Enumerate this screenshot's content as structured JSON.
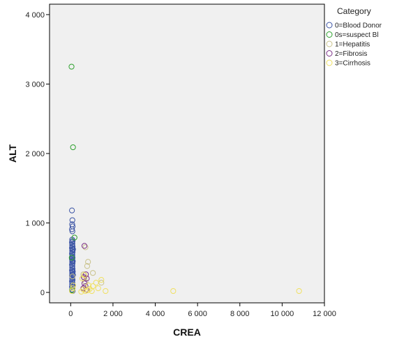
{
  "chart_data": {
    "type": "scatter",
    "xlabel": "CREA",
    "ylabel": "ALT",
    "xlim": [
      -1000,
      12000
    ],
    "ylim": [
      -150,
      4150
    ],
    "xticks": [
      0,
      2000,
      4000,
      6000,
      8000,
      10000,
      12000
    ],
    "xtick_labels": [
      "0",
      "2 000",
      "4 000",
      "6 000",
      "8 000",
      "10 000",
      "12 000"
    ],
    "yticks": [
      0,
      1000,
      2000,
      3000,
      4000
    ],
    "ytick_labels": [
      "0",
      "1 000",
      "2 000",
      "3 000",
      "4 000"
    ],
    "grid": false,
    "legend": {
      "title": "Category",
      "placement": "right"
    },
    "series": [
      {
        "name": "0=Blood Donor",
        "color": "#3a53a4",
        "points": [
          [
            60,
            1180
          ],
          [
            80,
            1040
          ],
          [
            70,
            980
          ],
          [
            90,
            950
          ],
          [
            60,
            910
          ],
          [
            80,
            880
          ],
          [
            70,
            760
          ],
          [
            90,
            740
          ],
          [
            60,
            720
          ],
          [
            80,
            700
          ],
          [
            70,
            680
          ],
          [
            90,
            660
          ],
          [
            60,
            640
          ],
          [
            80,
            620
          ],
          [
            70,
            600
          ],
          [
            90,
            580
          ],
          [
            60,
            560
          ],
          [
            80,
            540
          ],
          [
            70,
            520
          ],
          [
            90,
            500
          ],
          [
            60,
            480
          ],
          [
            80,
            460
          ],
          [
            70,
            440
          ],
          [
            90,
            420
          ],
          [
            60,
            400
          ],
          [
            80,
            380
          ],
          [
            70,
            360
          ],
          [
            90,
            340
          ],
          [
            60,
            320
          ],
          [
            80,
            300
          ],
          [
            70,
            280
          ],
          [
            90,
            260
          ],
          [
            60,
            240
          ],
          [
            80,
            220
          ],
          [
            70,
            200
          ],
          [
            90,
            180
          ],
          [
            60,
            160
          ],
          [
            80,
            140
          ],
          [
            70,
            120
          ],
          [
            90,
            100
          ],
          [
            60,
            80
          ],
          [
            80,
            60
          ],
          [
            70,
            40
          ],
          [
            90,
            20
          ],
          [
            100,
            300
          ],
          [
            110,
            250
          ],
          [
            100,
            450
          ],
          [
            110,
            620
          ]
        ]
      },
      {
        "name": "0s=suspect Bl",
        "color": "#2ca02c",
        "points": [
          [
            40,
            3250
          ],
          [
            110,
            2090
          ],
          [
            180,
            790
          ],
          [
            50,
            500
          ],
          [
            60,
            30
          ]
        ]
      },
      {
        "name": "1=Hepatitis",
        "color": "#c9c28a",
        "points": [
          [
            700,
            650
          ],
          [
            820,
            440
          ],
          [
            780,
            380
          ],
          [
            1050,
            280
          ],
          [
            600,
            260
          ],
          [
            650,
            200
          ],
          [
            700,
            150
          ],
          [
            1450,
            140
          ],
          [
            600,
            60
          ],
          [
            80,
            230
          ]
        ]
      },
      {
        "name": "2=Fibrosis",
        "color": "#7b2f86",
        "points": [
          [
            650,
            670
          ],
          [
            720,
            260
          ],
          [
            620,
            220
          ],
          [
            760,
            200
          ],
          [
            650,
            130
          ],
          [
            700,
            90
          ],
          [
            600,
            60
          ],
          [
            740,
            40
          ]
        ]
      },
      {
        "name": "3=Cirrhosis",
        "color": "#f0e060",
        "points": [
          [
            10800,
            20
          ],
          [
            4850,
            20
          ],
          [
            1650,
            20
          ],
          [
            1450,
            180
          ],
          [
            1200,
            140
          ],
          [
            1050,
            90
          ],
          [
            900,
            50
          ],
          [
            800,
            30
          ],
          [
            700,
            20
          ],
          [
            600,
            40
          ],
          [
            500,
            10
          ],
          [
            1300,
            60
          ],
          [
            1000,
            20
          ],
          [
            850,
            100
          ],
          [
            650,
            250
          ],
          [
            550,
            200
          ],
          [
            100,
            60
          ],
          [
            60,
            20
          ],
          [
            120,
            100
          ]
        ]
      }
    ]
  }
}
